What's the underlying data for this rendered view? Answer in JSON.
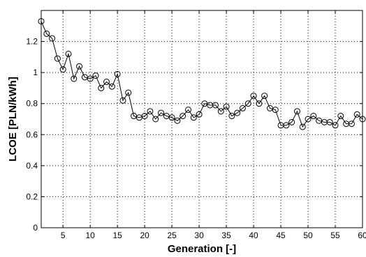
{
  "chart_data": {
    "type": "line",
    "xlabel": "Generation [-]",
    "ylabel": "LCOE [PLN/kWh]",
    "xlim": [
      1,
      60
    ],
    "ylim": [
      0,
      1.4
    ],
    "xticks": [
      5,
      10,
      15,
      20,
      25,
      30,
      35,
      40,
      45,
      50,
      55,
      60
    ],
    "yticks": [
      0,
      0.2,
      0.4,
      0.6,
      0.8,
      1,
      1.2
    ],
    "xtick_labels": [
      "5",
      "10",
      "15",
      "20",
      "25",
      "30",
      "35",
      "40",
      "45",
      "50",
      "55",
      "60"
    ],
    "ytick_labels": [
      "0",
      "0.2",
      "0.4",
      "0.6",
      "0.8",
      "1",
      "1.2"
    ],
    "grid": true,
    "marker": "circle",
    "series": [
      {
        "x": [
          1,
          2,
          3,
          4,
          5,
          6,
          7,
          8,
          9,
          10,
          11,
          12,
          13,
          14,
          15,
          16,
          17,
          18,
          19,
          20,
          21,
          22,
          23,
          24,
          25,
          26,
          27,
          28,
          29,
          30,
          31,
          32,
          33,
          34,
          35,
          36,
          37,
          38,
          39,
          40,
          41,
          42,
          43,
          44,
          45,
          46,
          47,
          48,
          49,
          50,
          51,
          52,
          53,
          54,
          55,
          56,
          57,
          58,
          59,
          60
        ],
        "values": [
          1.33,
          1.25,
          1.22,
          1.09,
          1.02,
          1.12,
          0.96,
          1.04,
          0.97,
          0.96,
          0.98,
          0.9,
          0.94,
          0.91,
          0.99,
          0.82,
          0.87,
          0.72,
          0.71,
          0.72,
          0.75,
          0.7,
          0.74,
          0.72,
          0.71,
          0.69,
          0.72,
          0.76,
          0.71,
          0.73,
          0.8,
          0.79,
          0.79,
          0.75,
          0.78,
          0.72,
          0.74,
          0.77,
          0.8,
          0.85,
          0.8,
          0.85,
          0.77,
          0.76,
          0.66,
          0.66,
          0.68,
          0.75,
          0.65,
          0.7,
          0.72,
          0.69,
          0.68,
          0.68,
          0.66,
          0.72,
          0.67,
          0.67,
          0.73,
          0.7
        ]
      }
    ]
  }
}
